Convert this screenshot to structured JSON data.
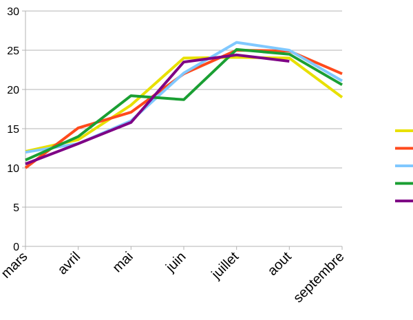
{
  "chart_data": {
    "type": "line",
    "title": "",
    "xlabel": "",
    "ylabel": "",
    "categories": [
      "mars",
      "avril",
      "mai",
      "juin",
      "juillet",
      "aout",
      "septembre"
    ],
    "ylim": [
      0,
      30
    ],
    "yticks": [
      "0",
      "5",
      "10",
      "15",
      "20",
      "25",
      "30"
    ],
    "grid": "horizontal",
    "legend_position": "right",
    "series": [
      {
        "color": "#e8e000",
        "values": [
          12.1,
          13.6,
          18.0,
          24.0,
          24.1,
          24.0,
          19.0
        ]
      },
      {
        "color": "#ff4a1c",
        "values": [
          10.0,
          15.1,
          17.1,
          22.0,
          25.0,
          24.9,
          22.0
        ]
      },
      {
        "color": "#80c8ff",
        "values": [
          12.0,
          13.1,
          16.0,
          22.1,
          26.0,
          25.0,
          21.1
        ]
      },
      {
        "color": "#1a9f33",
        "values": [
          11.0,
          14.0,
          19.2,
          18.7,
          25.1,
          24.5,
          20.6
        ]
      },
      {
        "color": "#7e0085",
        "values": [
          10.5,
          13.1,
          15.8,
          23.5,
          24.4,
          23.6,
          null
        ]
      }
    ]
  }
}
